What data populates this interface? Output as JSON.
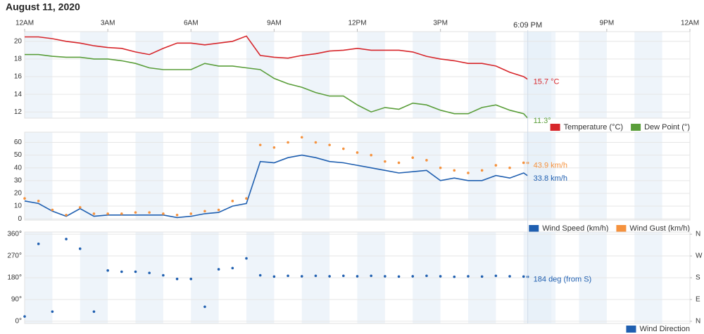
{
  "title": "August 11, 2020",
  "now_label": "6:09 PM",
  "chart_data": [
    {
      "type": "line",
      "xlim": [
        0,
        24
      ],
      "xticks": [
        {
          "value": 0,
          "label": "12AM"
        },
        {
          "value": 3,
          "label": "3AM"
        },
        {
          "value": 6,
          "label": "6AM"
        },
        {
          "value": 9,
          "label": "9AM"
        },
        {
          "value": 12,
          "label": "12PM"
        },
        {
          "value": 15,
          "label": "3PM"
        },
        {
          "value": 21,
          "label": "9PM"
        },
        {
          "value": 24,
          "label": "12AM"
        }
      ],
      "ylim": [
        11.3,
        21.1
      ],
      "yticks": [
        12,
        14,
        16,
        18,
        20
      ],
      "grid": true,
      "legend": "bottom-right",
      "x": [
        0,
        0.5,
        1,
        1.5,
        2,
        2.5,
        3,
        3.5,
        4,
        4.5,
        5,
        5.5,
        6,
        6.5,
        7,
        7.5,
        8,
        8.5,
        9,
        9.5,
        10,
        10.5,
        11,
        11.5,
        12,
        12.5,
        13,
        13.5,
        14,
        14.5,
        15,
        15.5,
        16,
        16.5,
        17,
        17.5,
        18,
        18.15
      ],
      "series": [
        {
          "name": "Temperature (°C)",
          "color": "#d7262b",
          "mark": "line",
          "end_label": "15.7 °C",
          "values": [
            20.5,
            20.5,
            20.3,
            20,
            19.8,
            19.5,
            19.3,
            19.2,
            18.8,
            18.5,
            19.2,
            19.8,
            19.8,
            19.6,
            19.8,
            20,
            20.6,
            18.4,
            18.2,
            18.1,
            18.4,
            18.6,
            18.9,
            19,
            19.2,
            19,
            19,
            19,
            18.8,
            18.3,
            18,
            17.8,
            17.5,
            17.5,
            17.2,
            16.5,
            16,
            15.7
          ]
        },
        {
          "name": "Dew Point (°)",
          "color": "#5a9e3a",
          "mark": "line",
          "end_label": "11.3°",
          "values": [
            18.5,
            18.5,
            18.3,
            18.2,
            18.2,
            18,
            18,
            17.8,
            17.5,
            17,
            16.8,
            16.8,
            16.8,
            17.5,
            17.2,
            17.2,
            17,
            16.8,
            15.8,
            15.2,
            14.8,
            14.2,
            13.8,
            13.8,
            12.8,
            12,
            12.5,
            12.3,
            13,
            12.8,
            12.2,
            11.8,
            11.8,
            12.5,
            12.8,
            12.2,
            11.8,
            11.3
          ]
        }
      ]
    },
    {
      "type": "line",
      "xlim": [
        0,
        24
      ],
      "ylim": [
        -1,
        68
      ],
      "yticks": [
        0,
        10,
        20,
        30,
        40,
        50,
        60
      ],
      "grid": true,
      "legend": "bottom-right",
      "x": [
        0,
        0.5,
        1,
        1.5,
        2,
        2.5,
        3,
        3.5,
        4,
        4.5,
        5,
        5.5,
        6,
        6.5,
        7,
        7.5,
        8,
        8.5,
        9,
        9.5,
        10,
        10.5,
        11,
        11.5,
        12,
        12.5,
        13,
        13.5,
        14,
        14.5,
        15,
        15.5,
        16,
        16.5,
        17,
        17.5,
        18,
        18.15
      ],
      "series": [
        {
          "name": "Wind Speed (km/h)",
          "color": "#1f5fb0",
          "mark": "line",
          "end_label": "33.8 km/h",
          "values": [
            14,
            12,
            6,
            2,
            8,
            2,
            3,
            3,
            3,
            3,
            3,
            1,
            2,
            4,
            5,
            10,
            12,
            45,
            44,
            48,
            50,
            48,
            45,
            44,
            42,
            40,
            38,
            36,
            37,
            38,
            30,
            32,
            30,
            30,
            34,
            32,
            36,
            33.8
          ]
        },
        {
          "name": "Wind Gust (km/h)",
          "color": "#f5923e",
          "mark": "dot",
          "end_label": "43.9 km/h",
          "values": [
            16,
            14,
            7,
            3,
            9,
            4,
            4,
            4,
            5,
            5,
            4,
            3,
            4,
            6,
            7,
            14,
            16,
            58,
            56,
            60,
            64,
            60,
            58,
            55,
            52,
            50,
            45,
            44,
            48,
            46,
            40,
            38,
            36,
            38,
            42,
            40,
            44,
            43.9
          ]
        }
      ]
    },
    {
      "type": "scatter",
      "xlim": [
        0,
        24
      ],
      "ylim": [
        -9,
        369
      ],
      "yticks": [
        {
          "value": 0,
          "label": "0°"
        },
        {
          "value": 90,
          "label": "90°"
        },
        {
          "value": 180,
          "label": "180°"
        },
        {
          "value": 270,
          "label": "270°"
        },
        {
          "value": 360,
          "label": "360°"
        }
      ],
      "y2lim": [
        -9,
        369
      ],
      "y2ticks": [
        {
          "value": 0,
          "label": "N"
        },
        {
          "value": 90,
          "label": "E"
        },
        {
          "value": 180,
          "label": "S"
        },
        {
          "value": 270,
          "label": "W"
        },
        {
          "value": 360,
          "label": "N"
        }
      ],
      "grid": true,
      "legend": "bottom-right",
      "x": [
        0,
        0.5,
        1,
        1.5,
        2,
        2.5,
        3,
        3.5,
        4,
        4.5,
        5,
        5.5,
        6,
        6.5,
        7,
        7.5,
        8,
        8.5,
        9,
        9.5,
        10,
        10.5,
        11,
        11.5,
        12,
        12.5,
        13,
        13.5,
        14,
        14.5,
        15,
        15.5,
        16,
        16.5,
        17,
        17.5,
        18,
        18.15
      ],
      "series": [
        {
          "name": "Wind Direction",
          "color": "#1f5fb0",
          "mark": "dot",
          "end_label": "184 deg (from S)",
          "values": [
            20,
            320,
            40,
            340,
            300,
            40,
            210,
            205,
            205,
            200,
            190,
            175,
            175,
            60,
            215,
            220,
            260,
            190,
            185,
            188,
            186,
            188,
            186,
            188,
            186,
            188,
            186,
            185,
            186,
            188,
            186,
            184,
            186,
            185,
            188,
            186,
            185,
            184
          ]
        }
      ]
    }
  ]
}
